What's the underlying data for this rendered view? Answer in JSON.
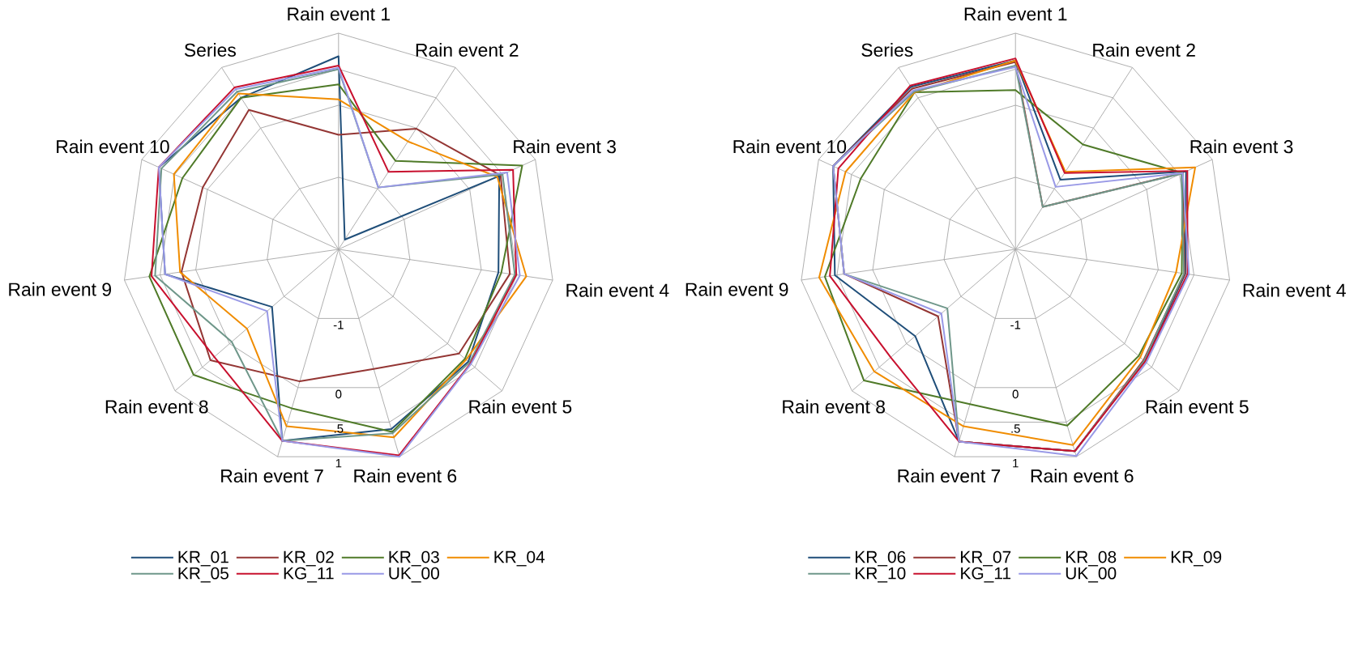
{
  "chart_data": [
    {
      "type": "radar",
      "categories": [
        "Rain event 1",
        "Rain event 2",
        "Rain event 3",
        "Rain event 4",
        "Rain event 5",
        "Rain event 6",
        "Rain event 7",
        "Rain event 8",
        "Rain event 9",
        "Rain event 10",
        "Series"
      ],
      "ylim": [
        -2,
        1
      ],
      "yticks": [
        -1,
        0,
        {
          "value": 0.5,
          "label": ".5"
        },
        1
      ],
      "grid": true,
      "legend": "bottom",
      "series": [
        {
          "name": "KR_01",
          "color": "#1f4e79",
          "values": [
            0.68,
            -1.84,
            0.45,
            0.24,
            0.38,
            0.6,
            0.77,
            -0.78,
            0.43,
            0.74,
            0.5
          ]
        },
        {
          "name": "KR_02",
          "color": "#943634",
          "values": [
            -0.41,
            -0.01,
            0.47,
            0.4,
            0.21,
            -0.27,
            -0.09,
            0.35,
            0.2,
            0.07,
            0.3
          ]
        },
        {
          "name": "KR_03",
          "color": "#4f7a28",
          "values": [
            0.29,
            -0.54,
            0.8,
            0.28,
            0.32,
            0.64,
            0.3,
            0.66,
            0.65,
            0.38,
            0.5
          ]
        },
        {
          "name": "KR_04",
          "color": "#f08c00",
          "values": [
            0.08,
            -0.22,
            0.42,
            0.63,
            0.34,
            0.72,
            0.56,
            -0.32,
            0.22,
            0.51,
            0.57
          ]
        },
        {
          "name": "KR_05",
          "color": "#6f978a",
          "values": [
            0.5,
            -0.98,
            0.5,
            0.47,
            0.4,
            0.66,
            0.77,
            -0.04,
            0.57,
            0.7,
            0.6
          ]
        },
        {
          "name": "KG_11",
          "color": "#c8102e",
          "values": [
            0.55,
            -0.72,
            0.66,
            0.49,
            0.42,
            0.98,
            0.77,
            0.28,
            0.62,
            0.74,
            0.67
          ]
        },
        {
          "name": "UK_00",
          "color": "#9999e6",
          "values": [
            0.52,
            -0.98,
            0.57,
            0.54,
            0.43,
            1.0,
            0.77,
            -0.69,
            0.43,
            0.74,
            0.64
          ]
        }
      ]
    },
    {
      "type": "radar",
      "categories": [
        "Rain event 1",
        "Rain event 2",
        "Rain event 3",
        "Rain event 4",
        "Rain event 5",
        "Rain event 6",
        "Rain event 7",
        "Rain event 8",
        "Rain event 9",
        "Rain event 10",
        "Series"
      ],
      "ylim": [
        -2,
        1
      ],
      "yticks": [
        -1,
        0,
        {
          "value": 0.5,
          "label": ".5"
        },
        1
      ],
      "grid": true,
      "legend": "bottom",
      "series": [
        {
          "name": "KR_06",
          "color": "#1f4e79",
          "values": [
            0.62,
            -0.85,
            0.6,
            0.38,
            0.37,
            0.92,
            0.78,
            -0.16,
            0.53,
            0.78,
            0.68
          ]
        },
        {
          "name": "KR_07",
          "color": "#943634",
          "values": [
            0.6,
            -1.3,
            0.55,
            0.37,
            0.35,
            0.92,
            0.78,
            -0.58,
            0.4,
            0.78,
            0.65
          ]
        },
        {
          "name": "KR_08",
          "color": "#4f7a28",
          "values": [
            0.21,
            -0.27,
            0.55,
            0.33,
            0.26,
            0.55,
            0.24,
            0.78,
            0.67,
            0.36,
            0.59
          ]
        },
        {
          "name": "KR_09",
          "color": "#f08c00",
          "values": [
            0.62,
            -0.72,
            0.74,
            0.25,
            0.29,
            0.83,
            0.56,
            0.59,
            0.75,
            0.59,
            0.59
          ]
        },
        {
          "name": "KR_10",
          "color": "#6f978a",
          "values": [
            0.55,
            -1.3,
            0.53,
            0.36,
            0.36,
            0.92,
            0.78,
            -0.75,
            0.4,
            0.78,
            0.6
          ]
        },
        {
          "name": "KG_11",
          "color": "#c8102e",
          "values": [
            0.65,
            -0.74,
            0.62,
            0.41,
            0.38,
            0.92,
            0.78,
            0.29,
            0.6,
            0.7,
            0.7
          ]
        },
        {
          "name": "UK_00",
          "color": "#9999e6",
          "values": [
            0.53,
            -0.97,
            0.55,
            0.43,
            0.4,
            0.99,
            0.78,
            -0.64,
            0.4,
            0.78,
            0.62
          ]
        }
      ]
    }
  ]
}
